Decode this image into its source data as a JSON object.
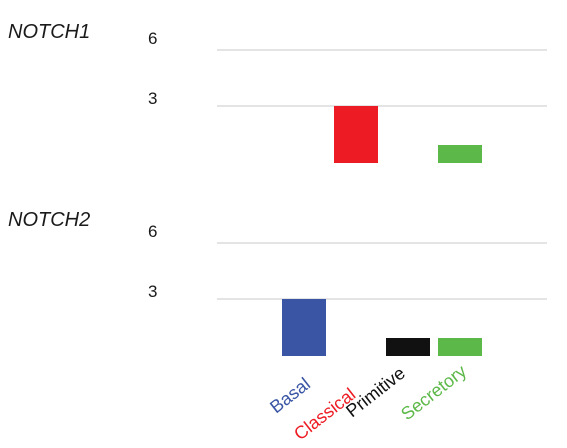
{
  "chart_data": [
    {
      "type": "bar",
      "title": "NOTCH1",
      "categories": [
        "Basal",
        "Classical",
        "Primitive",
        "Secretory"
      ],
      "values": [
        0,
        3,
        0,
        1
      ],
      "yticks": [
        3,
        6
      ],
      "ylim": [
        0,
        6
      ],
      "grid": true
    },
    {
      "type": "bar",
      "title": "NOTCH2",
      "categories": [
        "Basal",
        "Classical",
        "Primitive",
        "Secretory"
      ],
      "values": [
        3,
        0,
        1,
        1
      ],
      "yticks": [
        3,
        6
      ],
      "ylim": [
        0,
        6
      ],
      "grid": true
    }
  ],
  "colors": {
    "Basal": "#3a55a4",
    "Classical": "#ed1c24",
    "Primitive": "#111111",
    "Secretory": "#5cb848"
  }
}
